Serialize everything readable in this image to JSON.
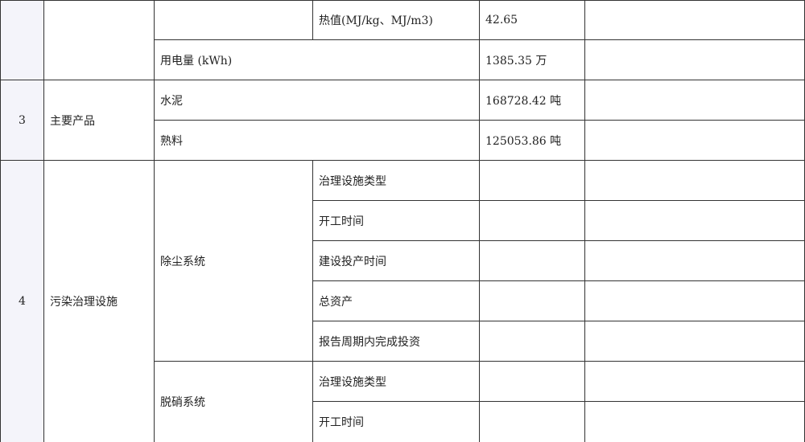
{
  "table": {
    "row_fuel_heat": {
      "item": "热值(MJ/kg、MJ/m3)",
      "value": "42.65"
    },
    "row_electricity": {
      "item": "用电量 (kWh)",
      "value": "1385.35 万"
    },
    "section3": {
      "index": "3",
      "name": "主要产品",
      "rows": [
        {
          "item": "水泥",
          "value": "168728.42 吨"
        },
        {
          "item": "熟料",
          "value": "125053.86 吨"
        }
      ]
    },
    "section4": {
      "index": "4",
      "name": "污染治理设施",
      "dust_system": {
        "name": "除尘系统",
        "items": [
          "治理设施类型",
          "开工时间",
          "建设投产时间",
          "总资产",
          "报告周期内完成投资"
        ]
      },
      "denitration_system": {
        "name": "脱硝系统",
        "items": [
          "治理设施类型",
          "开工时间"
        ]
      }
    }
  }
}
